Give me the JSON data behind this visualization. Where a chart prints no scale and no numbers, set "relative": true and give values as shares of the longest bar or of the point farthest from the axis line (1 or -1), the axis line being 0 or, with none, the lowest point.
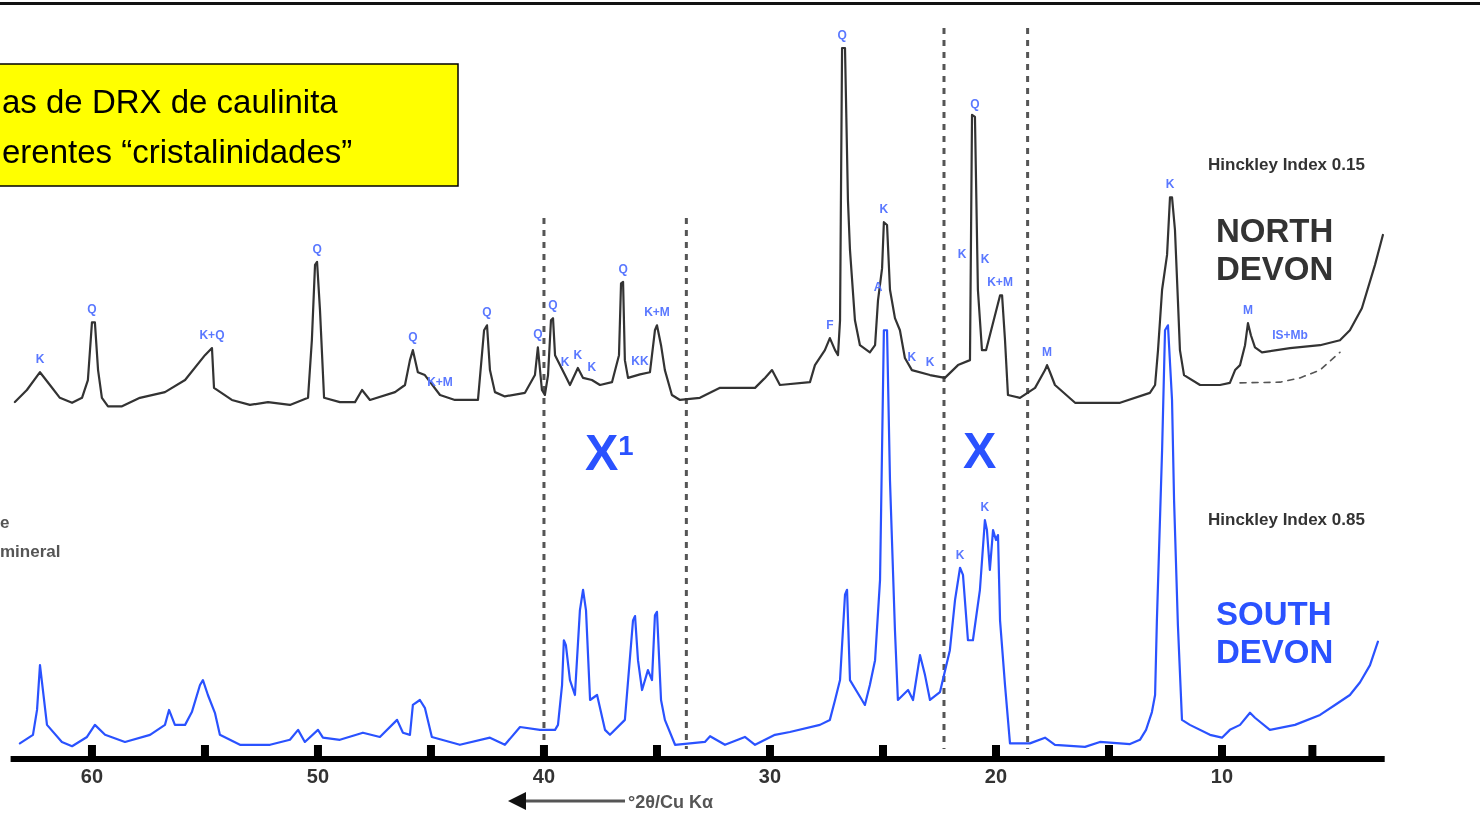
{
  "chart_data": {
    "type": "line",
    "relative": true,
    "title": "as de DRX de caulinita\nerentes “cristalinidades”",
    "xlabel": "°2θ/Cu Kα",
    "xlim": [
      63.6,
      2.8
    ],
    "xticks": [
      60,
      {
        "value": 55,
        "label": null
      },
      50,
      {
        "value": 45,
        "label": null
      },
      40,
      {
        "value": 35,
        "label": null
      },
      30,
      {
        "value": 25,
        "label": null
      },
      20,
      {
        "value": 15,
        "label": null
      },
      10,
      {
        "value": 6,
        "label": null
      }
    ],
    "ref_lines": [
      {
        "axis": "x",
        "value": 40.0,
        "color": "#555555",
        "line_style": "dashed"
      },
      {
        "axis": "x",
        "value": 33.7,
        "color": "#555555",
        "line_style": "dashed"
      },
      {
        "axis": "x",
        "value": 22.3,
        "color": "#555555",
        "line_style": "dashed"
      },
      {
        "axis": "x",
        "value": 18.6,
        "color": "#555555",
        "line_style": "dashed"
      }
    ],
    "series": [
      {
        "name": "NORTH DEVON",
        "color": "#333333",
        "line_style": "solid",
        "x": [
          63.41,
          62.88,
          62.3,
          61.86,
          61.42,
          60.88,
          60.44,
          60.18,
          60.0,
          59.87,
          59.73,
          59.56,
          59.29,
          58.67,
          57.88,
          56.77,
          55.88,
          55.0,
          54.69,
          54.6,
          53.81,
          53.01,
          52.21,
          51.24,
          50.44,
          50.27,
          50.13,
          50.04,
          49.91,
          49.73,
          49.03,
          48.36,
          48.05,
          47.7,
          46.59,
          46.15,
          45.93,
          45.8,
          45.58,
          45.27,
          44.6,
          43.94,
          42.92,
          42.65,
          42.52,
          42.39,
          42.17,
          41.73,
          40.84,
          40.4,
          40.27,
          40.09,
          39.96,
          39.82,
          39.69,
          39.6,
          39.51,
          39.07,
          38.85,
          38.5,
          38.27,
          37.88,
          37.52,
          36.99,
          36.68,
          36.59,
          36.5,
          36.42,
          36.28,
          35.75,
          35.31,
          35.09,
          35.0,
          34.82,
          34.65,
          34.34,
          33.98,
          33.1,
          32.21,
          30.66,
          30.22,
          29.91,
          29.56,
          28.23,
          28.01,
          27.57,
          27.35,
          27.12,
          26.99,
          26.9,
          26.81,
          26.68,
          26.55,
          26.46,
          26.24,
          26.02,
          25.58,
          25.35,
          25.22,
          25.04,
          24.96,
          24.82,
          24.69,
          24.47,
          24.25,
          24.03,
          23.72,
          22.92,
          22.26,
          21.68,
          21.15,
          21.06,
          20.93,
          20.8,
          20.62,
          20.44,
          20.27,
          19.82,
          19.73,
          19.6,
          19.47,
          18.94,
          18.27,
          17.83,
          17.74,
          17.61,
          17.39,
          16.5,
          15.4,
          14.51,
          13.19,
          12.96,
          12.83,
          12.65,
          12.43,
          12.3,
          12.21,
          12.08,
          11.95,
          11.86,
          11.68,
          10.97,
          10.09,
          9.65,
          9.42,
          9.2,
          8.98,
          8.85,
          8.72,
          8.54,
          8.23,
          6.99,
          5.66,
          4.78,
          4.34,
          3.81,
          3.23,
          2.88
        ],
        "values": [
          0.502,
          0.519,
          0.544,
          0.526,
          0.508,
          0.501,
          0.508,
          0.533,
          0.614,
          0.614,
          0.547,
          0.508,
          0.496,
          0.496,
          0.508,
          0.516,
          0.533,
          0.568,
          0.578,
          0.522,
          0.505,
          0.498,
          0.502,
          0.498,
          0.508,
          0.589,
          0.695,
          0.699,
          0.631,
          0.508,
          0.502,
          0.502,
          0.519,
          0.505,
          0.516,
          0.526,
          0.561,
          0.575,
          0.544,
          0.54,
          0.512,
          0.505,
          0.505,
          0.603,
          0.61,
          0.547,
          0.516,
          0.51,
          0.515,
          0.54,
          0.579,
          0.519,
          0.512,
          0.54,
          0.617,
          0.62,
          0.568,
          0.54,
          0.526,
          0.55,
          0.536,
          0.533,
          0.526,
          0.53,
          0.568,
          0.669,
          0.671,
          0.561,
          0.536,
          0.541,
          0.544,
          0.603,
          0.61,
          0.582,
          0.547,
          0.512,
          0.505,
          0.508,
          0.522,
          0.522,
          0.536,
          0.547,
          0.526,
          0.53,
          0.554,
          0.575,
          0.592,
          0.575,
          0.568,
          0.617,
          1.0,
          1.0,
          0.786,
          0.716,
          0.617,
          0.582,
          0.572,
          0.582,
          0.645,
          0.69,
          0.755,
          0.751,
          0.66,
          0.62,
          0.603,
          0.564,
          0.547,
          0.54,
          0.536,
          0.554,
          0.561,
          0.906,
          0.903,
          0.66,
          0.575,
          0.575,
          0.596,
          0.652,
          0.652,
          0.589,
          0.512,
          0.508,
          0.522,
          0.547,
          0.554,
          0.544,
          0.526,
          0.501,
          0.501,
          0.501,
          0.515,
          0.526,
          0.575,
          0.66,
          0.709,
          0.79,
          0.79,
          0.744,
          0.645,
          0.575,
          0.54,
          0.526,
          0.526,
          0.529,
          0.547,
          0.554,
          0.582,
          0.613,
          0.596,
          0.579,
          0.572,
          0.578,
          0.582,
          0.589,
          0.603,
          0.634,
          0.695,
          0.737
        ]
      },
      {
        "color": "#555555",
        "line_style": "dashed",
        "x": [
          9.2,
          7.43,
          6.55,
          5.66,
          4.78
        ],
        "values": [
          0.529,
          0.53,
          0.536,
          0.547,
          0.572
        ]
      },
      {
        "name": "SOUTH DEVON",
        "color": "#2a52ff",
        "line_style": "solid",
        "x": [
          63.19,
          62.61,
          62.43,
          62.3,
          62.17,
          61.99,
          61.33,
          60.88,
          60.22,
          59.87,
          59.42,
          58.54,
          57.43,
          56.77,
          56.59,
          56.33,
          55.88,
          55.58,
          55.22,
          55.09,
          54.87,
          54.56,
          54.34,
          53.45,
          52.12,
          51.24,
          50.88,
          50.58,
          50.0,
          49.78,
          49.03,
          48.01,
          47.26,
          46.5,
          46.24,
          45.93,
          45.8,
          45.49,
          45.27,
          44.96,
          43.72,
          42.39,
          41.73,
          41.06,
          40.18,
          39.51,
          39.38,
          39.2,
          39.12,
          39.03,
          38.85,
          38.63,
          38.41,
          38.27,
          38.14,
          37.96,
          37.65,
          37.3,
          37.08,
          36.42,
          36.06,
          35.97,
          35.84,
          35.66,
          35.4,
          35.22,
          35.09,
          35.0,
          34.82,
          34.65,
          34.2,
          32.88,
          32.65,
          31.99,
          31.11,
          30.66,
          29.78,
          29.12,
          27.79,
          27.35,
          27.12,
          26.9,
          26.68,
          26.59,
          26.46,
          25.93,
          25.8,
          25.58,
          25.35,
          25.13,
          24.96,
          24.82,
          24.69,
          24.47,
          24.34,
          23.89,
          23.67,
          23.36,
          23.14,
          22.92,
          22.48,
          22.04,
          21.81,
          21.59,
          21.46,
          21.24,
          21.02,
          20.71,
          20.49,
          20.4,
          20.27,
          20.13,
          20.0,
          19.91,
          19.82,
          19.6,
          19.38,
          18.5,
          17.83,
          17.39,
          16.06,
          15.4,
          14.07,
          13.63,
          13.36,
          13.1,
          12.96,
          12.88,
          12.65,
          12.52,
          12.39,
          12.21,
          12.12,
          11.95,
          11.77,
          11.42,
          10.53,
          10.0,
          9.65,
          9.2,
          8.76,
          8.54,
          7.88,
          6.77,
          5.66,
          5.0,
          4.34,
          3.89,
          3.45,
          3.1
        ],
        "values": [
          0.022,
          0.034,
          0.069,
          0.132,
          0.097,
          0.048,
          0.024,
          0.018,
          0.031,
          0.048,
          0.034,
          0.024,
          0.034,
          0.048,
          0.069,
          0.048,
          0.048,
          0.066,
          0.104,
          0.111,
          0.09,
          0.065,
          0.034,
          0.02,
          0.02,
          0.027,
          0.041,
          0.024,
          0.041,
          0.03,
          0.027,
          0.037,
          0.031,
          0.055,
          0.037,
          0.034,
          0.076,
          0.083,
          0.072,
          0.031,
          0.02,
          0.03,
          0.02,
          0.045,
          0.041,
          0.041,
          0.048,
          0.104,
          0.167,
          0.16,
          0.111,
          0.09,
          0.209,
          0.238,
          0.209,
          0.083,
          0.09,
          0.041,
          0.034,
          0.055,
          0.195,
          0.201,
          0.139,
          0.097,
          0.125,
          0.111,
          0.202,
          0.207,
          0.083,
          0.055,
          0.02,
          0.024,
          0.032,
          0.02,
          0.031,
          0.02,
          0.034,
          0.038,
          0.048,
          0.055,
          0.083,
          0.111,
          0.231,
          0.238,
          0.111,
          0.083,
          0.076,
          0.104,
          0.139,
          0.252,
          0.603,
          0.603,
          0.392,
          0.181,
          0.083,
          0.097,
          0.083,
          0.146,
          0.118,
          0.083,
          0.094,
          0.153,
          0.224,
          0.269,
          0.259,
          0.167,
          0.167,
          0.238,
          0.336,
          0.322,
          0.266,
          0.322,
          0.308,
          0.315,
          0.195,
          0.104,
          0.022,
          0.022,
          0.03,
          0.02,
          0.017,
          0.024,
          0.021,
          0.027,
          0.041,
          0.066,
          0.09,
          0.195,
          0.434,
          0.603,
          0.61,
          0.505,
          0.364,
          0.188,
          0.055,
          0.048,
          0.034,
          0.03,
          0.041,
          0.048,
          0.065,
          0.058,
          0.041,
          0.048,
          0.062,
          0.076,
          0.09,
          0.108,
          0.132,
          0.165
        ]
      }
    ],
    "annotations": [
      {
        "text": "K",
        "x": 62.3,
        "y": 0.544
      },
      {
        "text": "Q",
        "x": 60.0,
        "y": 0.614
      },
      {
        "text": "K+Q",
        "x": 54.69,
        "y": 0.578
      },
      {
        "text": "Q",
        "x": 50.04,
        "y": 0.699
      },
      {
        "text": "Q",
        "x": 45.8,
        "y": 0.575
      },
      {
        "text": "K+M",
        "x": 44.6,
        "y": 0.512
      },
      {
        "text": "Q",
        "x": 42.52,
        "y": 0.61
      },
      {
        "text": "Q",
        "x": 40.27,
        "y": 0.579
      },
      {
        "text": "Q",
        "x": 39.6,
        "y": 0.62
      },
      {
        "text": "K",
        "x": 39.07,
        "y": 0.54
      },
      {
        "text": "K",
        "x": 38.5,
        "y": 0.55
      },
      {
        "text": "K",
        "x": 37.88,
        "y": 0.533
      },
      {
        "text": "Q",
        "x": 36.5,
        "y": 0.671
      },
      {
        "text": "KK",
        "x": 35.75,
        "y": 0.541
      },
      {
        "text": "K+M",
        "x": 35.0,
        "y": 0.61
      },
      {
        "text": "F",
        "x": 27.35,
        "y": 0.592
      },
      {
        "text": "Q",
        "x": 26.81,
        "y": 1.0
      },
      {
        "text": "A",
        "x": 25.22,
        "y": 0.645
      },
      {
        "text": "K",
        "x": 24.96,
        "y": 0.755
      },
      {
        "text": "K",
        "x": 23.72,
        "y": 0.547
      },
      {
        "text": "K",
        "x": 22.92,
        "y": 0.54
      },
      {
        "text": "Q",
        "x": 20.93,
        "y": 0.903
      },
      {
        "text": "K+M",
        "x": 19.82,
        "y": 0.652
      },
      {
        "text": "M",
        "x": 17.74,
        "y": 0.554
      },
      {
        "text": "K",
        "x": 12.3,
        "y": 0.79
      },
      {
        "text": "M",
        "x": 8.85,
        "y": 0.613
      },
      {
        "text": "IS+Mb",
        "x": 6.99,
        "y": 0.578
      },
      {
        "text": "K",
        "x": 21.59,
        "y": 0.269
      },
      {
        "text": "K",
        "x": 20.49,
        "y": 0.336
      },
      "Hinckley Index 0.15",
      "Hinckley Index 0.85",
      "X$^{1}$",
      "X",
      "e",
      "mineral",
      "K",
      "K"
    ]
  }
}
